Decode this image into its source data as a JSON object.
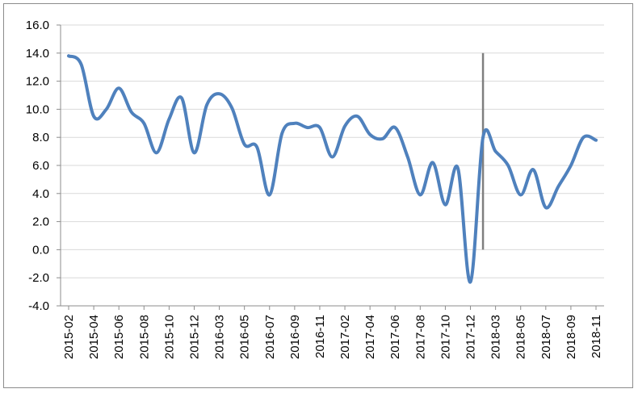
{
  "chart_data": {
    "type": "line",
    "title": "",
    "xlabel": "",
    "ylabel": "",
    "ylim": [
      -4.0,
      16.0
    ],
    "y_ticks": [
      "16.0",
      "14.0",
      "12.0",
      "10.0",
      "8.0",
      "6.0",
      "4.0",
      "2.0",
      "0.0",
      "-2.0",
      "-4.0"
    ],
    "grid": true,
    "legend": "none",
    "colors": {
      "series": "#4f81bd",
      "marker_line": "#7f7f7f",
      "grid": "#d9d9d9",
      "axis": "#8c8c8c"
    },
    "x_tick_labels": [
      "2015-02",
      "2015-04",
      "2015-06",
      "2015-08",
      "2015-10",
      "2015-12",
      "2016-03",
      "2016-05",
      "2016-07",
      "2016-09",
      "2016-11",
      "2017-02",
      "2017-04",
      "2017-06",
      "2017-08",
      "2017-10",
      "2017-12",
      "2018-03",
      "2018-05",
      "2018-07",
      "2018-09",
      "2018-11"
    ],
    "categories": [
      "2015-02",
      "2015-03",
      "2015-04",
      "2015-05",
      "2015-06",
      "2015-07",
      "2015-08",
      "2015-09",
      "2015-10",
      "2015-11",
      "2015-12",
      "2016-01",
      "2016-03",
      "2016-04",
      "2016-05",
      "2016-06",
      "2016-07",
      "2016-08",
      "2016-09",
      "2016-10",
      "2016-11",
      "2016-12",
      "2017-02",
      "2017-03",
      "2017-04",
      "2017-05",
      "2017-06",
      "2017-07",
      "2017-08",
      "2017-09",
      "2017-10",
      "2017-11",
      "2017-12",
      "2018-01",
      "2018-03",
      "2018-04",
      "2018-05",
      "2018-06",
      "2018-07",
      "2018-08",
      "2018-09",
      "2018-10",
      "2018-11"
    ],
    "series": [
      {
        "values": [
          13.8,
          13.2,
          9.5,
          10.0,
          11.5,
          9.8,
          9.0,
          6.9,
          9.3,
          10.8,
          6.9,
          10.3,
          11.1,
          10.1,
          7.5,
          7.3,
          3.9,
          8.3,
          9.0,
          8.7,
          8.7,
          6.6,
          8.8,
          9.5,
          8.2,
          7.9,
          8.7,
          6.6,
          3.9,
          6.2,
          3.2,
          5.8,
          -2.3,
          8.0,
          7.0,
          6.0,
          3.9,
          5.7,
          3.0,
          4.5,
          6.0,
          8.0,
          7.8
        ]
      }
    ],
    "marker_line": {
      "x_category": "2018-01",
      "y_from": 0.0,
      "y_to": 14.0
    }
  }
}
